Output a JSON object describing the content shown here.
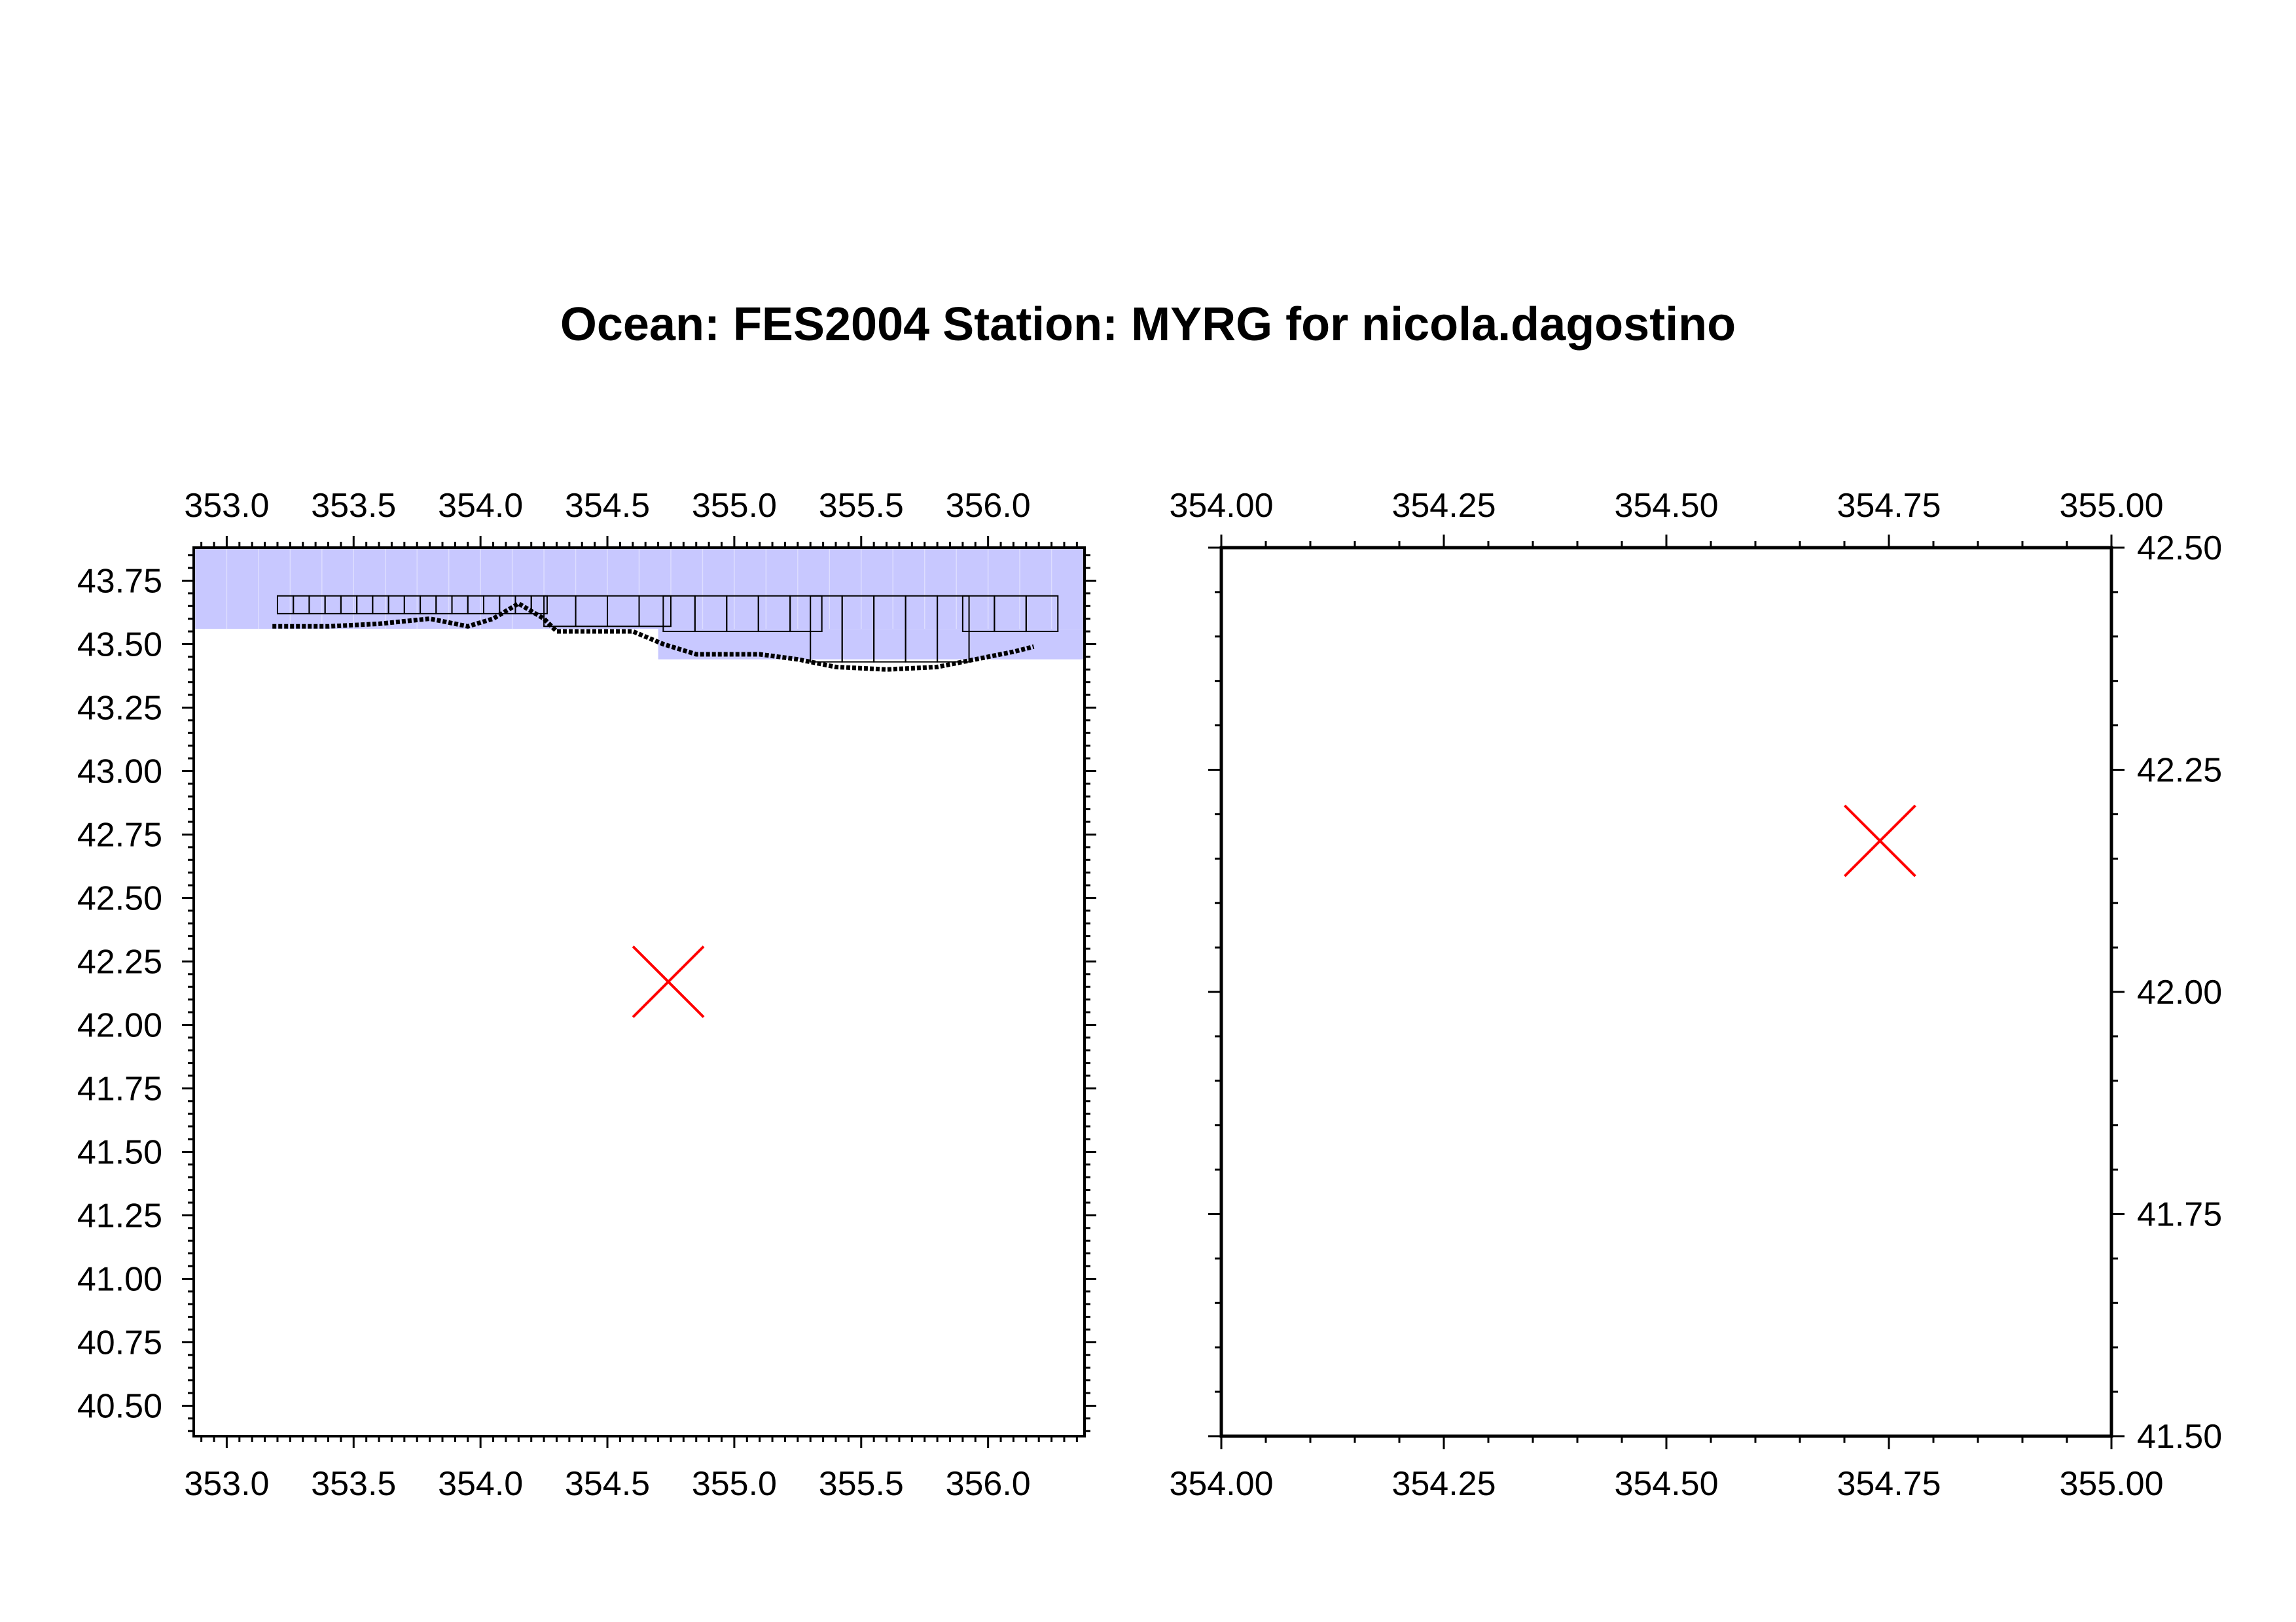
{
  "title": "Ocean: FES2004  Station: MYRG  for nicola.dagostino",
  "colors": {
    "ocean_fill": "#c8c8ff",
    "grid_line": "#000000",
    "station_marker": "#ff0000",
    "frame": "#000000"
  },
  "left_map": {
    "x_range": [
      352.87,
      356.38
    ],
    "y_range": [
      40.38,
      43.88
    ],
    "x_ticks": [
      "353.0",
      "353.5",
      "354.0",
      "354.5",
      "355.0",
      "355.5",
      "356.0"
    ],
    "y_ticks": [
      "43.75",
      "43.50",
      "43.25",
      "43.00",
      "42.75",
      "42.50",
      "42.25",
      "42.00",
      "41.75",
      "41.50",
      "41.25",
      "41.00",
      "40.75",
      "40.50"
    ],
    "ocean_regions": [
      {
        "lon": [
          352.87,
          356.38
        ],
        "lat": [
          43.56,
          43.88
        ]
      },
      {
        "lon": [
          354.7,
          356.38
        ],
        "lat": [
          43.44,
          43.56
        ]
      }
    ],
    "station": {
      "lon": 354.74,
      "lat": 42.17
    }
  },
  "right_map": {
    "x_range": [
      354.0,
      355.0
    ],
    "y_range": [
      41.5,
      42.5
    ],
    "x_ticks": [
      "354.00",
      "354.25",
      "354.50",
      "354.75",
      "355.00"
    ],
    "y_ticks": [
      "42.50",
      "42.25",
      "42.00",
      "41.75",
      "41.50"
    ],
    "station": {
      "lon": 354.74,
      "lat": 42.17
    }
  }
}
